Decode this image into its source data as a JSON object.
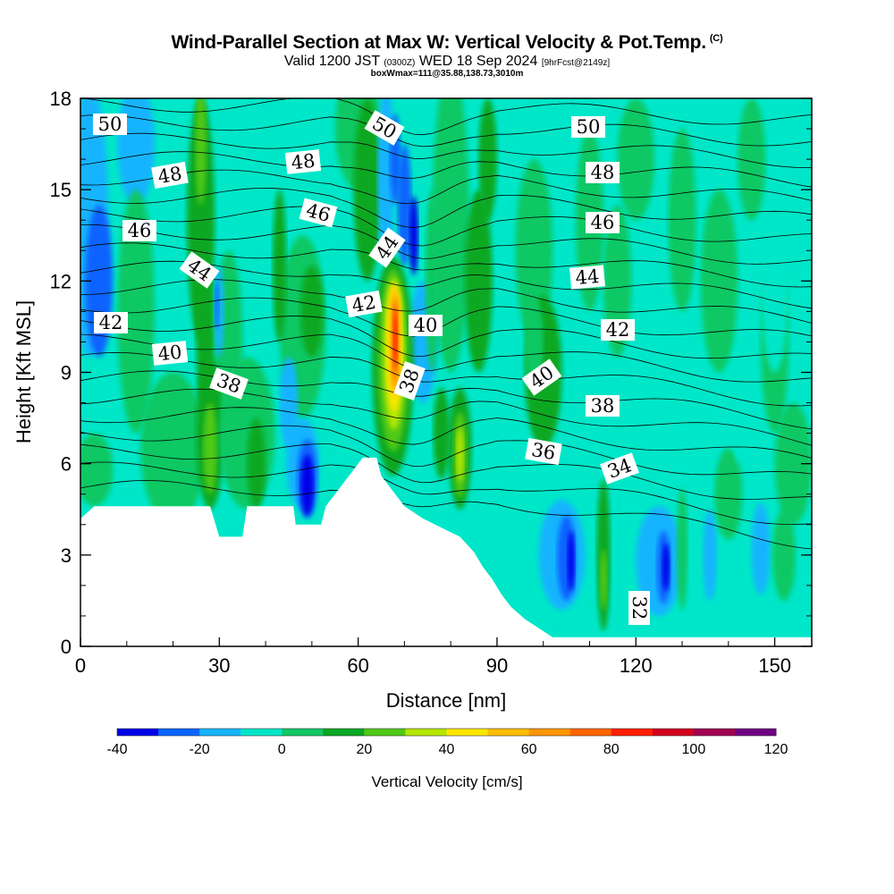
{
  "chart_data": {
    "type": "heatmap",
    "title": "Wind-Parallel Section at Max W: Vertical Velocity & Pot.Temp.",
    "title_mark": "(C)",
    "subtitle_main": "Valid 1200 JST",
    "subtitle_z": "(0300Z)",
    "subtitle_date": "WED 18 Sep 2024",
    "subtitle_fcst": "[9hrFcst@2149z]",
    "box_info": "boxWmax=111@35.88,138.73,3010m",
    "xlabel": "Distance [nm]",
    "ylabel": "Height [Kft MSL]",
    "xlim": [
      0,
      158
    ],
    "ylim": [
      0,
      18
    ],
    "x_ticks": [
      "0",
      "30",
      "60",
      "90",
      "120",
      "150"
    ],
    "y_ticks": [
      "0",
      "3",
      "6",
      "9",
      "12",
      "15",
      "18"
    ],
    "colorbar": {
      "label": "Vertical Velocity [cm/s]",
      "tick_labels": [
        "-40",
        "-20",
        "0",
        "20",
        "40",
        "60",
        "80",
        "100",
        "120"
      ],
      "range": [
        -40,
        120
      ],
      "colors": [
        "#0000e8",
        "#0a64ff",
        "#16b4ff",
        "#00e6c8",
        "#10c864",
        "#0aa824",
        "#50c814",
        "#b4e600",
        "#ffe600",
        "#ffbe00",
        "#ff9600",
        "#ff6400",
        "#ff1e00",
        "#d2001e",
        "#a00050",
        "#6e0082"
      ]
    },
    "theta_contour_labels": [
      "50",
      "48",
      "46",
      "44",
      "42",
      "40",
      "38",
      "36",
      "34",
      "32",
      "50",
      "48",
      "46",
      "44",
      "42",
      "40",
      "38",
      "50",
      "48",
      "46",
      "44",
      "42",
      "40",
      "38"
    ],
    "max_w_cm_s": 111,
    "max_w_location": "35.88,138.73,3010m",
    "terrain_profile_kft": [
      [
        0,
        4.2
      ],
      [
        3,
        4.6
      ],
      [
        28,
        4.6
      ],
      [
        30,
        3.6
      ],
      [
        35,
        3.6
      ],
      [
        36,
        4.6
      ],
      [
        46,
        4.6
      ],
      [
        46.5,
        4.0
      ],
      [
        52,
        4.0
      ],
      [
        53,
        4.6
      ],
      [
        55,
        5.0
      ],
      [
        58,
        5.6
      ],
      [
        61,
        6.2
      ],
      [
        64,
        6.2
      ],
      [
        65,
        5.6
      ],
      [
        68,
        5.0
      ],
      [
        70,
        4.6
      ],
      [
        74,
        4.2
      ],
      [
        78,
        3.9
      ],
      [
        82,
        3.6
      ],
      [
        85,
        3.1
      ],
      [
        87,
        2.6
      ],
      [
        89,
        2.2
      ],
      [
        91,
        1.7
      ],
      [
        93,
        1.3
      ],
      [
        96,
        0.9
      ],
      [
        99,
        0.6
      ],
      [
        102,
        0.3
      ],
      [
        158,
        0.3
      ]
    ]
  }
}
